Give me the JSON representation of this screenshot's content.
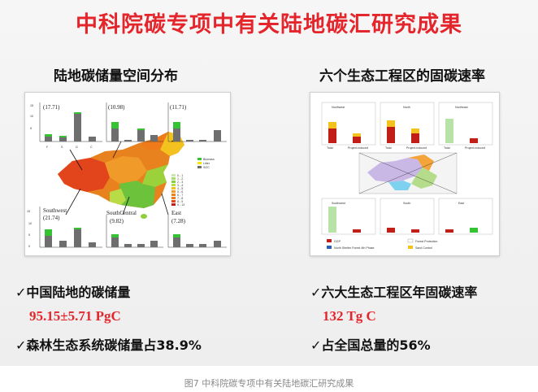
{
  "slide_title": "中科院碳专项中有关陆地碳汇研究成果",
  "left_section": {
    "title": "陆地碳储量空间分布",
    "regions": [
      {
        "name": "",
        "value": "(17.71)"
      },
      {
        "name": "",
        "value": "(10.98)"
      },
      {
        "name": "",
        "value": "(11.71)"
      },
      {
        "name": "Southwest",
        "value": "(21.74)"
      },
      {
        "name": "SouthCentral",
        "value": "(9.82)"
      },
      {
        "name": "East",
        "value": "(7.28)"
      }
    ],
    "bar_categories": [
      "F",
      "S",
      "G",
      "C"
    ],
    "legend": [
      "Biomass",
      "Litter",
      "SOC"
    ],
    "scale_legend": [
      "0 - 1",
      "1 - 2",
      "2 - 3",
      "3 - 4",
      "4 - 5",
      "5 - 6",
      "6 - 7",
      "7 - 8",
      "8 - 9",
      "9 - 13"
    ],
    "axis_ticks": [
      "15",
      "10",
      "5",
      "0"
    ],
    "findings": [
      {
        "check": "✓",
        "text": "中国陆地的碳储量"
      },
      {
        "check": "✓",
        "text": "森林生态系统碳储量占38.9%"
      }
    ],
    "value": "95.15±5.71 PgC"
  },
  "right_section": {
    "title": "六个生态工程区的固碳速率",
    "panel_titles": [
      "Northwest",
      "North",
      "Northeast",
      "Southwest",
      "South",
      "East"
    ],
    "bar_categories": [
      "Total",
      "Project-induced"
    ],
    "legend": [
      "GGP",
      "Forest Protection",
      "North Shelter Forest 4th Phase",
      "Sand Control"
    ],
    "findings": [
      {
        "check": "✓",
        "text": "六大生态工程区年固碳速率"
      },
      {
        "check": "✓",
        "text": "占全国总量的56%"
      }
    ],
    "value": "132 Tg C"
  },
  "caption": "图7 中科院碳专项中有关陆地碳汇研究成果",
  "colors": {
    "title_red": "#e4262c",
    "soc": "#6e6e6e",
    "litter": "#f6e600",
    "biomass": "#35c233"
  }
}
